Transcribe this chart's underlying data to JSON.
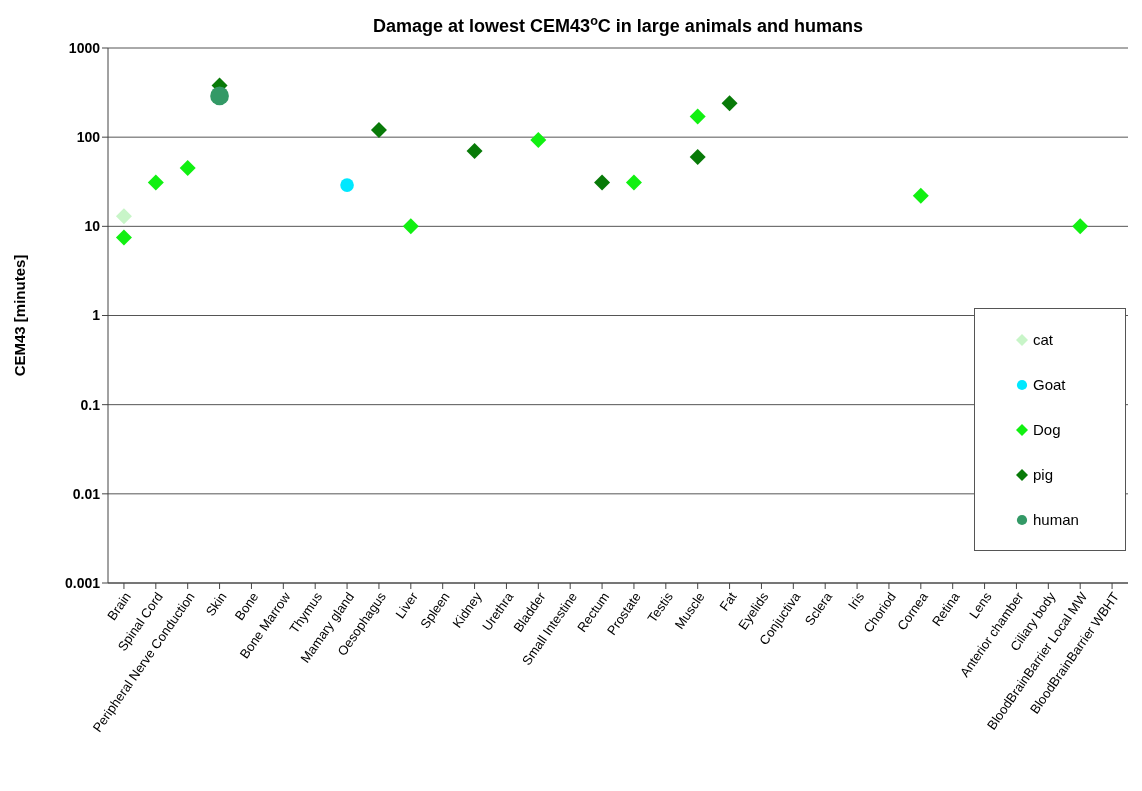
{
  "chart_data": {
    "type": "scatter",
    "title": "Damage at lowest CEM43$^{o}$C in large animals and humans",
    "ylabel": "CEM43 [minutes]",
    "categories": [
      "Brain",
      "Spinal Cord",
      "Peripheral Nerve Conduction",
      "Skin",
      "Bone",
      "Bone Marrow",
      "Thymus",
      "Mamary gland",
      "Oesophagus",
      "Liver",
      "Spleen",
      "Kidney",
      "Urethra",
      "Bladder",
      "Small Intestine",
      "Rectum",
      "Prostate",
      "Testis",
      "Muscle",
      "Fat",
      "Eyelids",
      "Conjuctiva",
      "Sclera",
      "Iris",
      "Choriod",
      "Cornea",
      "Retina",
      "Lens",
      "Anterior chamber",
      "Ciliary body",
      "BloodBrainBarrier Local MW",
      "BloodBrainBarrier WBHT"
    ],
    "series": [
      {
        "name": "cat",
        "color": "#c8f5c8",
        "marker": "diamond",
        "values": [
          13,
          null,
          null,
          null,
          null,
          null,
          null,
          null,
          null,
          null,
          null,
          null,
          null,
          null,
          null,
          null,
          null,
          null,
          null,
          null,
          null,
          null,
          null,
          null,
          null,
          null,
          null,
          null,
          null,
          null,
          null,
          null
        ]
      },
      {
        "name": "Goat",
        "color": "#00e8ff",
        "marker": "circle",
        "values": [
          null,
          null,
          null,
          null,
          null,
          null,
          null,
          29,
          null,
          null,
          null,
          null,
          null,
          null,
          null,
          null,
          null,
          null,
          null,
          null,
          null,
          null,
          null,
          null,
          null,
          null,
          null,
          null,
          null,
          null,
          null,
          null
        ]
      },
      {
        "name": "Dog",
        "color": "#11f011",
        "marker": "diamond",
        "values": [
          7.5,
          31,
          45,
          null,
          null,
          null,
          null,
          null,
          null,
          10,
          null,
          null,
          null,
          93,
          null,
          null,
          31,
          null,
          170,
          null,
          null,
          null,
          null,
          null,
          null,
          22,
          null,
          null,
          null,
          null,
          10,
          null
        ]
      },
      {
        "name": "pig",
        "color": "#087a08",
        "marker": "diamond",
        "values": [
          null,
          null,
          null,
          380,
          null,
          null,
          null,
          null,
          120,
          null,
          null,
          70,
          null,
          null,
          null,
          31,
          null,
          null,
          60,
          240,
          null,
          null,
          null,
          null,
          null,
          null,
          null,
          null,
          null,
          null,
          null,
          null
        ]
      },
      {
        "name": "human",
        "color": "#339966",
        "marker": "circle",
        "values": [
          null,
          null,
          null,
          290,
          null,
          null,
          null,
          null,
          null,
          null,
          null,
          null,
          null,
          null,
          null,
          null,
          null,
          null,
          null,
          null,
          null,
          null,
          null,
          null,
          null,
          null,
          null,
          null,
          null,
          null,
          null,
          null
        ]
      }
    ],
    "log": "y",
    "ylim": [
      0.001,
      1000
    ],
    "yticks": [
      0.001,
      0.01,
      0.1,
      1,
      10,
      100,
      1000
    ],
    "grid": "y",
    "legend": "right"
  }
}
